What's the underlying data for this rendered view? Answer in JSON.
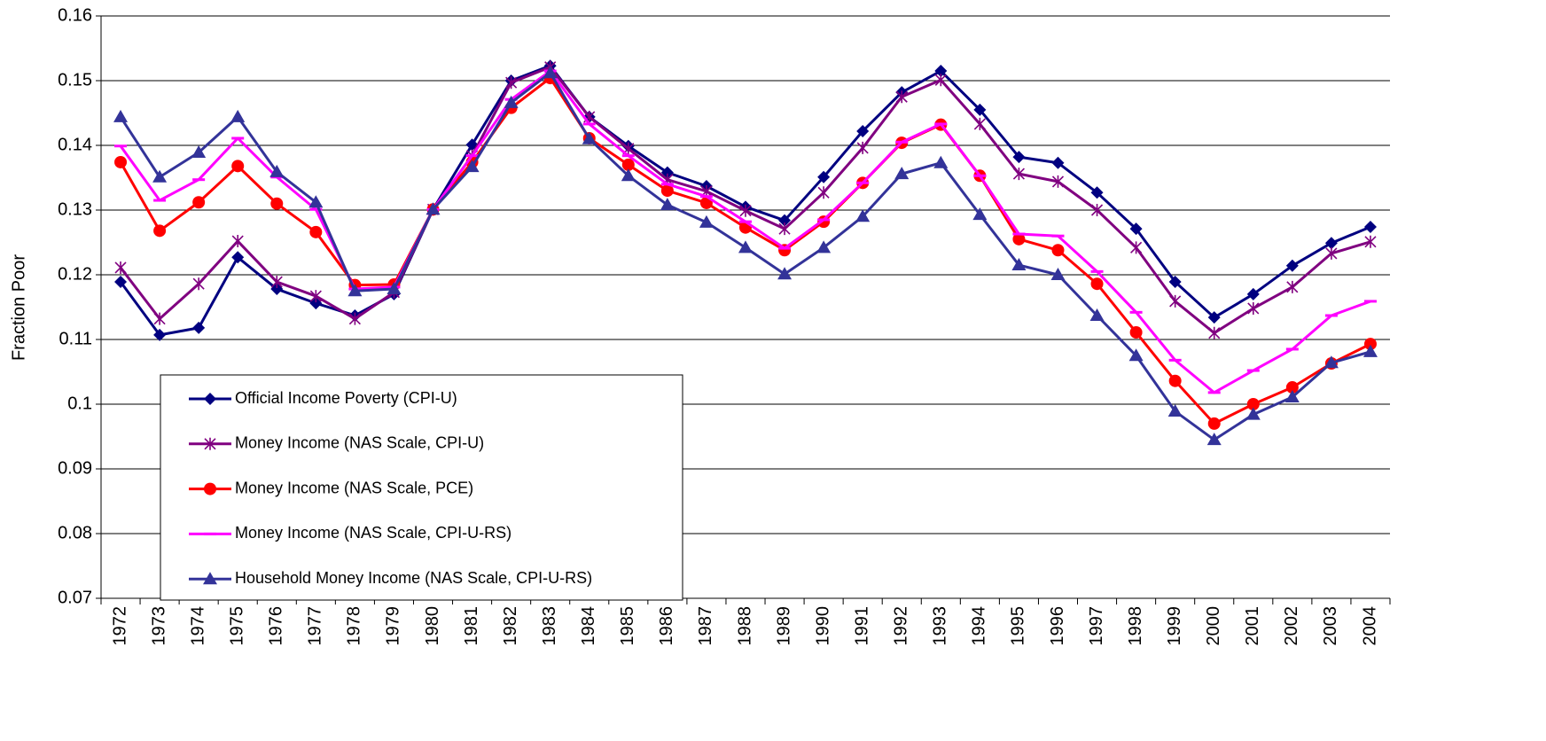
{
  "chart_data": {
    "type": "line",
    "y_label": "Fraction Poor",
    "categories": [
      "1972",
      "1973",
      "1974",
      "1975",
      "1976",
      "1977",
      "1978",
      "1979",
      "1980",
      "1981",
      "1982",
      "1983",
      "1984",
      "1985",
      "1986",
      "1987",
      "1988",
      "1989",
      "1990",
      "1991",
      "1992",
      "1993",
      "1994",
      "1995",
      "1996",
      "1997",
      "1998",
      "1999",
      "2000",
      "2001",
      "2002",
      "2003",
      "2004"
    ],
    "ylim": [
      0.07,
      0.16
    ],
    "yticks": [
      0.07,
      0.08,
      0.09,
      0.1,
      0.11,
      0.12,
      0.13,
      0.14,
      0.15,
      0.16
    ],
    "grid": true,
    "legend": "lower left",
    "series": [
      {
        "name": "Official Income Poverty (CPI-U)",
        "color": "#000080",
        "marker": "diamond",
        "values": [
          0.1189,
          0.1107,
          0.1118,
          0.1227,
          0.1178,
          0.1156,
          0.1137,
          0.117,
          0.1301,
          0.1401,
          0.15,
          0.1523,
          0.1444,
          0.1399,
          0.1358,
          0.1337,
          0.1305,
          0.1284,
          0.1351,
          0.1422,
          0.1482,
          0.1515,
          0.1455,
          0.1382,
          0.1373,
          0.1327,
          0.1271,
          0.1189,
          0.1134,
          0.117,
          0.1214,
          0.1249,
          0.1274
        ]
      },
      {
        "name": "Money Income (NAS Scale, CPI-U)",
        "color": "#800080",
        "marker": "star",
        "values": [
          0.1211,
          0.1132,
          0.1186,
          0.1252,
          0.1189,
          0.1167,
          0.1132,
          0.1173,
          0.1301,
          0.1384,
          0.1497,
          0.1521,
          0.1444,
          0.1395,
          0.1347,
          0.1329,
          0.1299,
          0.1271,
          0.1327,
          0.1396,
          0.1475,
          0.1501,
          0.1433,
          0.1356,
          0.1344,
          0.13,
          0.1242,
          0.1159,
          0.111,
          0.1148,
          0.1181,
          0.1233,
          0.1251
        ]
      },
      {
        "name": "Money Income (NAS Scale, PCE)",
        "color": "#ff0000",
        "marker": "circle",
        "values": [
          0.1374,
          0.1268,
          0.1312,
          0.1368,
          0.131,
          0.1266,
          0.1184,
          0.1185,
          0.1301,
          0.1374,
          0.1458,
          0.1504,
          0.1411,
          0.137,
          0.133,
          0.1311,
          0.1273,
          0.1238,
          0.1282,
          0.1342,
          0.1404,
          0.1432,
          0.1353,
          0.1255,
          0.1238,
          0.1186,
          0.1111,
          0.1036,
          0.097,
          0.1,
          0.1026,
          0.1063,
          0.1093
        ]
      },
      {
        "name": "Money Income (NAS Scale, CPI-U-RS)",
        "color": "#ff00ff",
        "marker": "dash",
        "values": [
          0.1399,
          0.1315,
          0.1347,
          0.1411,
          0.1351,
          0.1301,
          0.1178,
          0.1181,
          0.1301,
          0.1384,
          0.1471,
          0.1515,
          0.1433,
          0.1384,
          0.134,
          0.1321,
          0.1282,
          0.1241,
          0.1285,
          0.1342,
          0.1405,
          0.1433,
          0.1353,
          0.1263,
          0.126,
          0.1205,
          0.1142,
          0.1068,
          0.1018,
          0.1052,
          0.1085,
          0.1137,
          0.1159
        ]
      },
      {
        "name": "Household Money Income (NAS Scale, CPI-U-RS)",
        "color": "#333399",
        "marker": "triangle",
        "values": [
          0.1444,
          0.1351,
          0.1389,
          0.1444,
          0.1359,
          0.1312,
          0.1175,
          0.1178,
          0.1301,
          0.1367,
          0.1466,
          0.1512,
          0.141,
          0.1353,
          0.1308,
          0.1281,
          0.1242,
          0.1201,
          0.1242,
          0.129,
          0.1356,
          0.1373,
          0.1293,
          0.1215,
          0.12,
          0.1137,
          0.1075,
          0.0989,
          0.0945,
          0.0984,
          0.1011,
          0.1064,
          0.1081
        ]
      }
    ]
  }
}
